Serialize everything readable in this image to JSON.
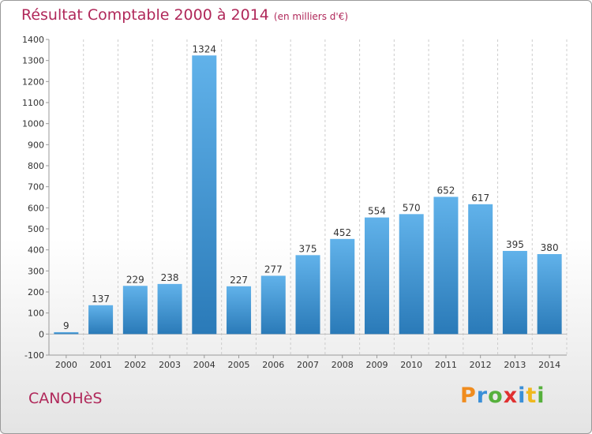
{
  "title": "Résultat Comptable 2000 à 2014",
  "subtitle": "(en milliers d'€)",
  "town": "CANOHèS",
  "logo": {
    "text": "Proxiti",
    "letters": [
      "P",
      "r",
      "o",
      "x",
      "i",
      "t",
      "i"
    ],
    "colors": [
      "#f08c1e",
      "#3a8fd8",
      "#56b03c",
      "#e03030",
      "#3a8fd8",
      "#f0b81e",
      "#56b03c"
    ]
  },
  "colors": {
    "bar_light": "#61b2ea",
    "bar_dark": "#2a7ab8",
    "title": "#b0285a",
    "grid": "#cccccc"
  },
  "chart_data": {
    "type": "bar",
    "title": "Résultat Comptable 2000 à 2014",
    "subtitle": "(en milliers d'€)",
    "xlabel": "",
    "ylabel": "",
    "categories": [
      "2000",
      "2001",
      "2002",
      "2003",
      "2004",
      "2005",
      "2006",
      "2007",
      "2008",
      "2009",
      "2010",
      "2011",
      "2012",
      "2013",
      "2014"
    ],
    "values": [
      9,
      137,
      229,
      238,
      1324,
      227,
      277,
      375,
      452,
      554,
      570,
      652,
      617,
      395,
      380
    ],
    "ylim": [
      -100,
      1400
    ],
    "yticks": [
      -100,
      0,
      100,
      200,
      300,
      400,
      500,
      600,
      700,
      800,
      900,
      1000,
      1100,
      1200,
      1300,
      1400
    ],
    "grid": true,
    "grid_axis": "x"
  }
}
